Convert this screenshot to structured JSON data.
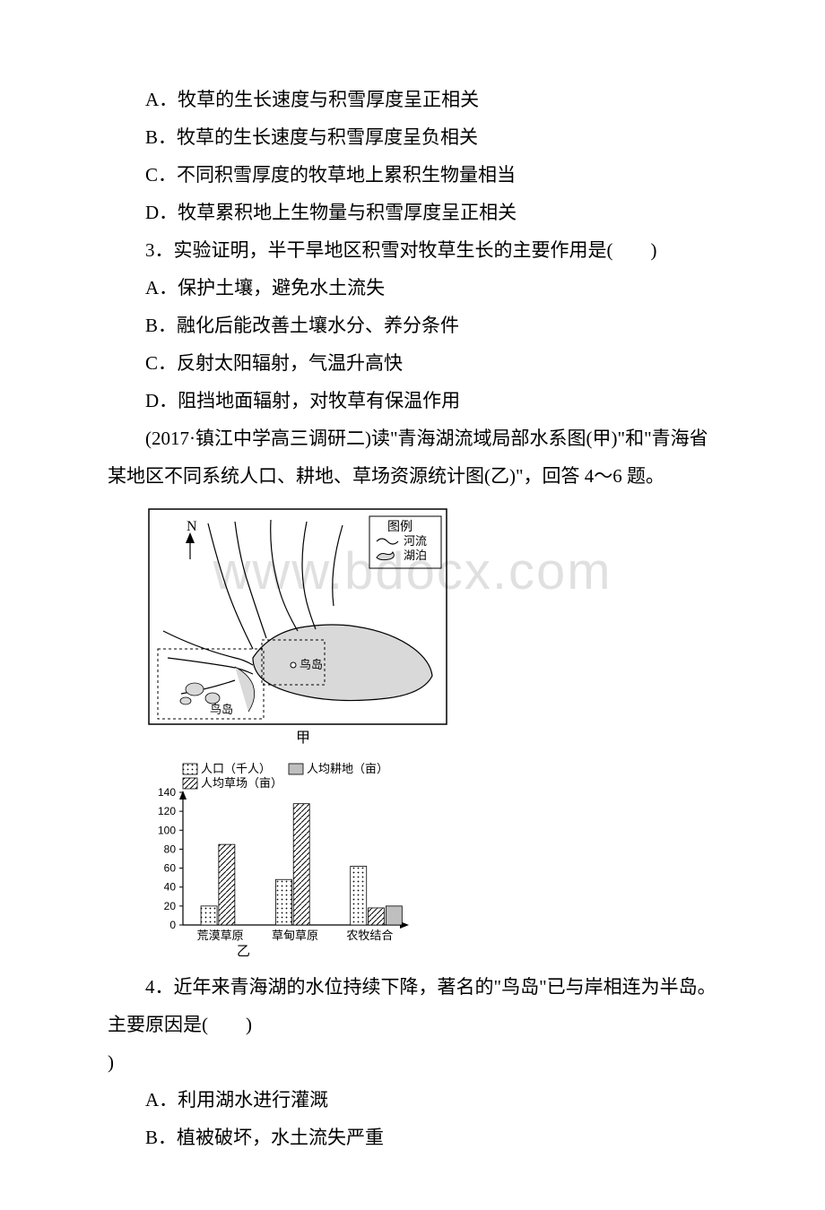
{
  "watermark": "www.bdocx.com",
  "q2": {
    "optA": "A．牧草的生长速度与积雪厚度呈正相关",
    "optB": "B．牧草的生长速度与积雪厚度呈负相关",
    "optC": "C．不同积雪厚度的牧草地上累积生物量相当",
    "optD": "D．牧草累积地上生物量与积雪厚度呈正相关"
  },
  "q3": {
    "stem": "3．实验证明，半干旱地区积雪对牧草生长的主要作用是(　　)",
    "optA": "A．保护土壤，避免水土流失",
    "optB": "B．融化后能改善土壤水分、养分条件",
    "optC": "C．反射太阳辐射，气温升高快",
    "optD": "D．阻挡地面辐射，对牧草有保温作用"
  },
  "passage": "(2017·镇江中学高三调研二)读\"青海湖流域局部水系图(甲)\"和\"青海省某地区不同系统人口、耕地、草场资源统计图(乙)\"，回答 4～6 题。",
  "map": {
    "caption": "甲",
    "legend_title": "图例",
    "legend_river": "河流",
    "legend_lake": "湖泊",
    "label_north": "N",
    "label_island_main": "鸟岛",
    "label_island_inset": "鸟岛",
    "colors": {
      "border": "#000000",
      "lake_fill": "#d9d9d9",
      "river": "#000000",
      "bg": "#ffffff"
    }
  },
  "chart": {
    "caption": "乙",
    "legend_pop": "人口（千人）",
    "legend_land": "人均耕地（亩）",
    "legend_grass": "人均草场（亩）",
    "y_ticks": [
      0,
      20,
      40,
      60,
      80,
      100,
      120,
      140
    ],
    "y_max": 140,
    "categories": [
      "荒漠草原",
      "草甸草原",
      "农牧结合"
    ],
    "series": {
      "population": [
        20,
        48,
        62
      ],
      "grassland": [
        85,
        128,
        18
      ],
      "arable": [
        0,
        0,
        20
      ]
    },
    "colors": {
      "axis": "#000000",
      "pop_fill": "#ffffff",
      "pop_pattern": "dots",
      "grass_fill": "#ffffff",
      "grass_pattern": "hatch",
      "land_fill": "#bfbfbf"
    }
  },
  "q4": {
    "stem": "4．近年来青海湖的水位持续下降，著名的\"鸟岛\"已与岸相连为半岛。主要原因是(　　)",
    "optA": "A．利用湖水进行灌溉",
    "optB": "B．植被破坏，水土流失严重"
  }
}
